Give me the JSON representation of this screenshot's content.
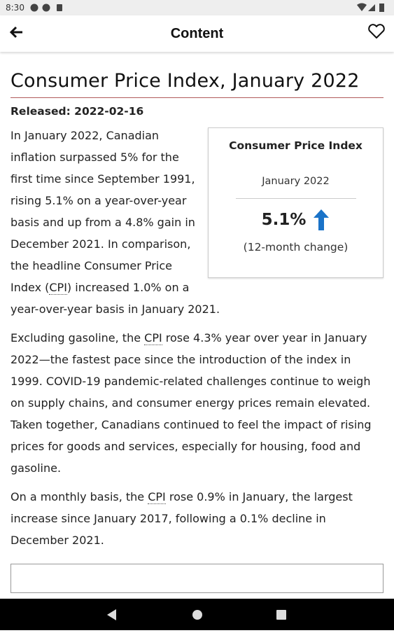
{
  "status_bar": {
    "time": "8:30"
  },
  "app_bar": {
    "title": "Content"
  },
  "article": {
    "title": "Consumer Price Index, January 2022",
    "released": "Released: 2022-02-16",
    "summary_box": {
      "heading": "Consumer Price Index",
      "period": "January 2022",
      "value": "5.1%",
      "note": "(12-month change)"
    },
    "paragraphs": [
      [
        "In January 2022, Canadian inflation surpassed 5% for the first time since September 1991, rising 5.1% on a year-over-year basis and up from a 4.8% gain in December 2021. In comparison, the headline Consumer Price Index (",
        "CPI",
        ") increased 1.0% on a year-over-year basis in January 2021."
      ],
      [
        "Excluding gasoline, the ",
        "CPI",
        " rose 4.3% year over year in January 2022—the fastest pace since the introduction of the index in 1999. COVID-19 pandemic-related challenges continue to weigh on supply chains, and consumer energy prices remain elevated. Taken together, Canadians continued to feel the impact of rising prices for goods and services, especially for housing, food and gasoline."
      ],
      [
        "On a monthly basis, the ",
        "CPI",
        " rose 0.9% in January, the largest increase since January 2017, following a 0.1% decline in December 2021."
      ]
    ]
  }
}
